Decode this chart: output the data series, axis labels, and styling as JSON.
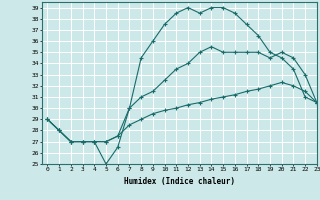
{
  "xlabel": "Humidex (Indice chaleur)",
  "bg_color": "#cce8e8",
  "grid_color": "#ffffff",
  "line_color": "#1a6b6b",
  "xlim": [
    -0.5,
    23
  ],
  "ylim": [
    25,
    39.5
  ],
  "xticks": [
    0,
    1,
    2,
    3,
    4,
    5,
    6,
    7,
    8,
    9,
    10,
    11,
    12,
    13,
    14,
    15,
    16,
    17,
    18,
    19,
    20,
    21,
    22,
    23
  ],
  "yticks": [
    25,
    26,
    27,
    28,
    29,
    30,
    31,
    32,
    33,
    34,
    35,
    36,
    37,
    38,
    39
  ],
  "series": [
    [
      29,
      28,
      27,
      27,
      27,
      25,
      26.5,
      30,
      34.5,
      36,
      37.5,
      38.5,
      39,
      38.5,
      39,
      39,
      38.5,
      37.5,
      36.5,
      35,
      34.5,
      33.5,
      31,
      30.5
    ],
    [
      29,
      28,
      27,
      27,
      27,
      27,
      27.5,
      30,
      31,
      31.5,
      32.5,
      33.5,
      34,
      35,
      35.5,
      35,
      35,
      35,
      35,
      34.5,
      35,
      34.5,
      33,
      30.5
    ],
    [
      29,
      28,
      27,
      27,
      27,
      27,
      27.5,
      28.5,
      29,
      29.5,
      29.8,
      30,
      30.3,
      30.5,
      30.8,
      31,
      31.2,
      31.5,
      31.7,
      32,
      32.3,
      32,
      31.5,
      30.5
    ]
  ]
}
